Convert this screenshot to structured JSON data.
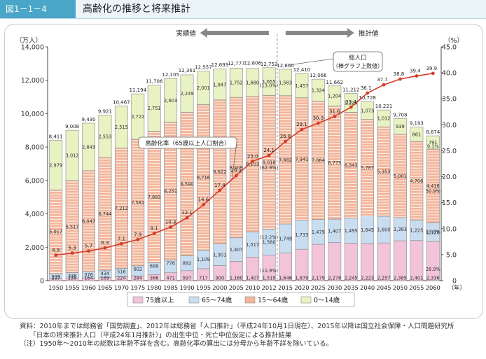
{
  "header": {
    "figure_number": "図1－1－4",
    "title": "高齢化の推移と将来推計"
  },
  "legend": [
    {
      "label": "75歳以上",
      "color": "#f2c3d9"
    },
    {
      "label": "65～74歳",
      "color": "#c9ddf1"
    },
    {
      "label": "15～64歳",
      "color": "#f3b59a"
    },
    {
      "label": "0～14歳",
      "color": "#e8f2c2"
    }
  ],
  "phase_labels": {
    "actual": "実績値",
    "projected": "推計値"
  },
  "callouts": {
    "total": "総人口\n（棒グラフ上数値）",
    "rate": "高齢化率（65歳以上人口割合）"
  },
  "notes": [
    "資料：2010年までは総務省「国勢調査」、2012年は総務省「人口推計」（平成24年10月1日現在）、2015年以降は国立社会保障・人口問題研究所",
    "　　「日本の将来推計人口（平成24年1月推計）」の出生中位・死亡中位仮定による推計結果",
    "（注）1950年～2010年の総数は年齢不詳を含む。高齢化率の算出には分母から年齢不詳を除いている。"
  ],
  "chart_data": {
    "type": "bar+line",
    "ylabel_left": "（万人）",
    "ylabel_right": "（%）",
    "xlabel": "（年）",
    "ylim_left": [
      0,
      14000
    ],
    "ylim_right": [
      0,
      45
    ],
    "yticks_left": [
      "0",
      "2,000",
      "4,000",
      "6,000",
      "8,000",
      "10,000",
      "12,000",
      "14,000"
    ],
    "yticks_right": [
      "0",
      "5.0",
      "10.0",
      "15.0",
      "20.0",
      "25.0",
      "30.0",
      "35.0",
      "40.0",
      "45.0"
    ],
    "categories": [
      "1950",
      "1955",
      "1960",
      "1965",
      "1970",
      "1975",
      "1980",
      "1985",
      "1990",
      "1995",
      "2000",
      "2005",
      "2010",
      "2012",
      "2015",
      "2020",
      "2025",
      "2030",
      "2035",
      "2040",
      "2045",
      "2050",
      "2055",
      "2060"
    ],
    "series": [
      {
        "name": "75歳以上",
        "labels": [
          "107",
          "139",
          "164",
          "189",
          "224",
          "284",
          "366",
          "471",
          "597",
          "717",
          "900",
          "1,160",
          "1,407",
          "1,519",
          "1,646",
          "1,879",
          "2,179",
          "2,278",
          "2,245",
          "2,223",
          "2,257",
          "2,385",
          "2,401",
          "2,336"
        ],
        "values": [
          107,
          139,
          164,
          189,
          224,
          284,
          366,
          471,
          597,
          717,
          900,
          1160,
          1407,
          1519,
          1646,
          1879,
          2179,
          2278,
          2245,
          2223,
          2257,
          2385,
          2401,
          2336
        ]
      },
      {
        "name": "65～74歳",
        "labels": [
          "309",
          "338",
          "376",
          "434",
          "516",
          "602",
          "699",
          "776",
          "892",
          "1,109",
          "1,301",
          "1,407",
          "1,517",
          "1,560",
          "1,749",
          "1,733",
          "1,479",
          "1,407",
          "1,495",
          "1,645",
          "1,600",
          "1,383",
          "1,225",
          "1,128"
        ],
        "values": [
          309,
          338,
          376,
          434,
          516,
          602,
          699,
          776,
          892,
          1109,
          1301,
          1407,
          1517,
          1560,
          1749,
          1733,
          1479,
          1407,
          1495,
          1645,
          1600,
          1383,
          1225,
          1128
        ]
      },
      {
        "name": "15～64歳",
        "labels": [
          "5,017",
          "5,517",
          "6,047",
          "6,744",
          "7,212",
          "7,581",
          "7,883",
          "8,251",
          "8,590",
          "8,716",
          "8,622",
          "8,409",
          "8,103",
          "8,018",
          "7,682",
          "7,341",
          "7,084",
          "6,773",
          "6,343",
          "5,787",
          "5,353",
          "5,001",
          "4,706",
          "4,418"
        ],
        "values": [
          5017,
          5517,
          6047,
          6744,
          7212,
          7581,
          7883,
          8251,
          8590,
          8716,
          8622,
          8409,
          8103,
          8018,
          7682,
          7341,
          7084,
          6773,
          6343,
          5787,
          5353,
          5001,
          4706,
          4418
        ]
      },
      {
        "name": "0～14歳",
        "labels": [
          "2,979",
          "3,012",
          "2,843",
          "2,553",
          "2,515",
          "2,722",
          "2,751",
          "2,603",
          "2,249",
          "2,001",
          "1,847",
          "1,752",
          "1,680",
          "1,655",
          "1,583",
          "1,457",
          "1,324",
          "1,204",
          "1,129",
          "1,073",
          "1,012",
          "939",
          "861",
          "791"
        ],
        "values": [
          2979,
          3012,
          2843,
          2553,
          2515,
          2722,
          2751,
          2603,
          2249,
          2001,
          1847,
          1752,
          1680,
          1655,
          1583,
          1457,
          1324,
          1204,
          1129,
          1073,
          1012,
          939,
          861,
          791
        ]
      }
    ],
    "totals": [
      "8,411",
      "9,008",
      "9,430",
      "9,921",
      "10,467",
      "11,194",
      "11,706",
      "12,105",
      "12,361",
      "12,557",
      "12,693",
      "12,777",
      "12,806",
      "12,752",
      "12,660",
      "12,410",
      "12,066",
      "11,662",
      "11,212",
      "10,728",
      "10,221",
      "9,708",
      "9,193",
      "8,674"
    ],
    "total_values": [
      8411,
      9008,
      9430,
      9921,
      10467,
      11194,
      11706,
      12105,
      12361,
      12557,
      12693,
      12777,
      12806,
      12752,
      12660,
      12410,
      12066,
      11662,
      11212,
      10728,
      10221,
      9708,
      9193,
      8674
    ],
    "aging_rate": {
      "name": "高齢化率",
      "labels": [
        "4.9",
        "5.3",
        "5.7",
        "6.3",
        "7.1",
        "7.9",
        "9.1",
        "10.3",
        "12.1",
        "14.6",
        "17.4",
        "20.2",
        "23.0",
        "24.1",
        "26.8",
        "29.1",
        "30.3",
        "31.6",
        "33.4",
        "36.1",
        "37.7",
        "38.8",
        "39.4",
        "39.9"
      ],
      "values": [
        4.9,
        5.3,
        5.7,
        6.3,
        7.1,
        7.9,
        9.1,
        10.3,
        12.1,
        14.6,
        17.4,
        20.2,
        23.0,
        24.1,
        26.8,
        29.1,
        30.3,
        31.6,
        33.4,
        36.1,
        37.7,
        38.8,
        39.4,
        39.9
      ]
    },
    "share_labels": [
      {
        "year": "2012",
        "labels": [
          "(11.9%)",
          "(12.2%)",
          "(62.9%)",
          "(13.0%)"
        ]
      },
      {
        "year": "2060",
        "labels": [
          "26.9%",
          "13.0%",
          "50.9%",
          "9.1%"
        ]
      }
    ],
    "colors": {
      "line": "#d63b2a",
      "divider": "#888888",
      "arrow": "#888888"
    }
  }
}
